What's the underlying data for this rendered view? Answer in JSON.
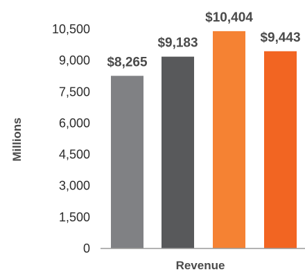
{
  "chart_data": {
    "type": "bar",
    "title": "",
    "xlabel": "Revenue",
    "ylabel": "Millions",
    "ylim": [
      0,
      10500
    ],
    "yticks": [
      0,
      1500,
      3000,
      4500,
      6000,
      7500,
      9000,
      10500
    ],
    "ytick_labels": [
      "0",
      "1,500",
      "3,000",
      "4,500",
      "6,000",
      "7,500",
      "9,000",
      "10,500"
    ],
    "grid": false,
    "legend": "none",
    "bars": [
      {
        "value": 8265,
        "label": "$8,265",
        "color": "#808184"
      },
      {
        "value": 9183,
        "label": "$9,183",
        "color": "#58595b"
      },
      {
        "value": 10404,
        "label": "$10,404",
        "color": "#f58233"
      },
      {
        "value": 9443,
        "label": "$9,443",
        "color": "#f26522"
      }
    ]
  }
}
